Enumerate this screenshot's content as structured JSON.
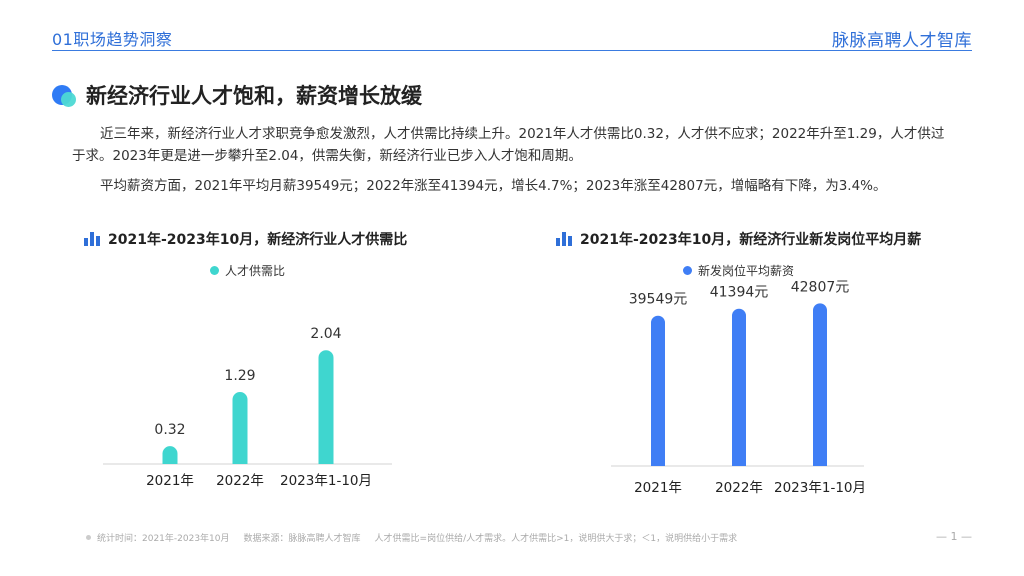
{
  "header": {
    "section": "01职场趋势洞察",
    "brand": "脉脉高聘人才智库"
  },
  "title": "新经济行业人才饱和，薪资增长放缓",
  "paragraphs": [
    "近三年来，新经济行业人才求职竞争愈发激烈，人才供需比持续上升。2021年人才供需比0.32，人才供不应求；2022年升至1.29，人才供过于求。2023年更是进一步攀升至2.04，供需失衡，新经济行业已步入人才饱和周期。",
    "平均薪资方面，2021年平均月薪39549元；2022年涨至41394元，增长4.7%；2023年涨至42807元，增幅略有下降，为3.4%。"
  ],
  "colors": {
    "left_series": "#3fd6cf",
    "right_series": "#3f7ef5",
    "header_blue": "#2f6fd8"
  },
  "chart_data": [
    {
      "type": "bar",
      "title": "2021年-2023年10月，新经济行业人才供需比",
      "categories": [
        "2021年",
        "2022年",
        "2023年1-10月"
      ],
      "series": [
        {
          "name": "人才供需比",
          "values": [
            0.32,
            1.29,
            2.04
          ],
          "labels": [
            "0.32",
            "1.29",
            "2.04"
          ]
        }
      ],
      "ylim": [
        0,
        2.6
      ],
      "grid": false,
      "legend": "top-center"
    },
    {
      "type": "bar",
      "title": "2021年-2023年10月，新经济行业新发岗位平均月薪",
      "categories": [
        "2021年",
        "2022年",
        "2023年1-10月"
      ],
      "series": [
        {
          "name": "新发岗位平均薪资",
          "values": [
            39549,
            41394,
            42807
          ],
          "labels": [
            "39549元",
            "41394元",
            "42807元"
          ]
        }
      ],
      "ylim": [
        0,
        50000
      ],
      "grid": false,
      "legend": "top-center"
    }
  ],
  "footer": {
    "stat_time": "统计时间：2021年-2023年10月",
    "source": "数据来源：脉脉高聘人才智库",
    "note": "人才供需比=岗位供给/人才需求。人才供需比>1，说明供大于求；＜1，说明供给小于需求",
    "page": "— 1 —"
  }
}
